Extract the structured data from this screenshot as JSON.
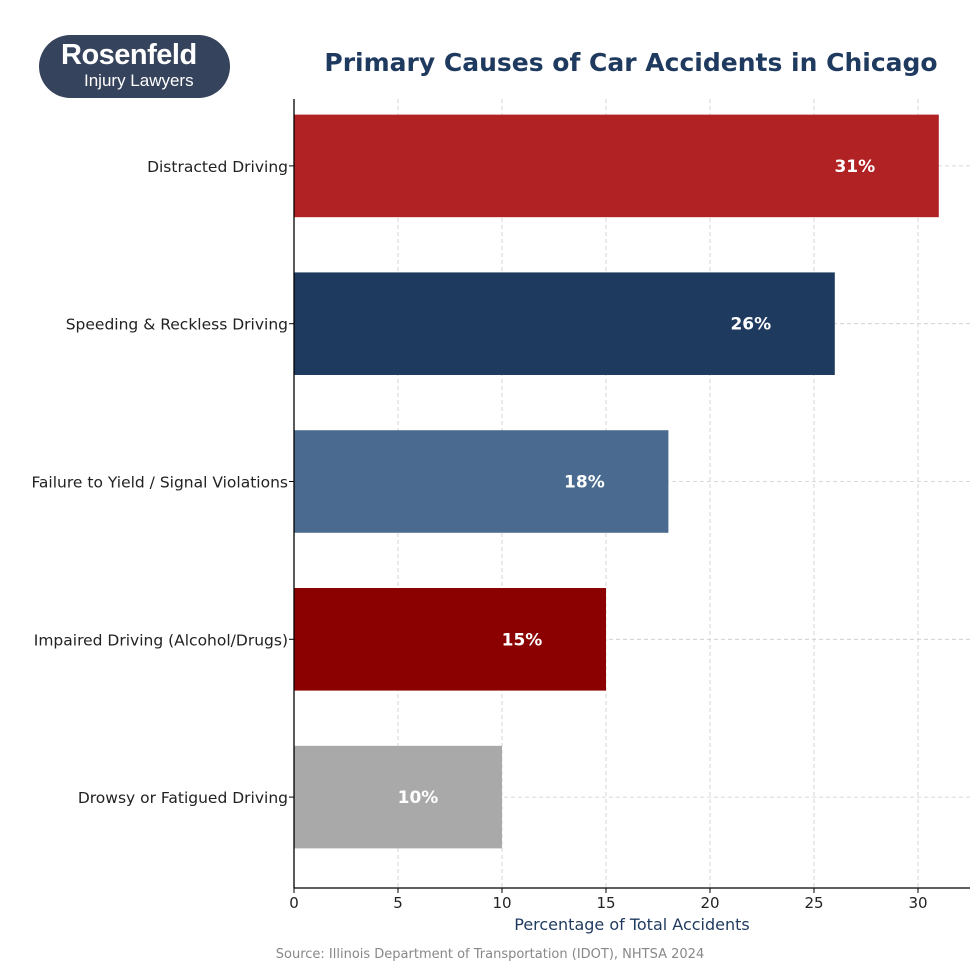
{
  "logo": {
    "line1": "Rosenfeld",
    "line2": "Injury Lawyers"
  },
  "chart_data": {
    "type": "bar",
    "orientation": "horizontal",
    "title": "Primary Causes of Car Accidents in Chicago",
    "xlabel": "Percentage of Total Accidents",
    "ylabel": "",
    "categories": [
      "Distracted Driving",
      "Speeding & Reckless Driving",
      "Failure to Yield / Signal Violations",
      "Impaired Driving (Alcohol/Drugs)",
      "Drowsy or Fatigued Driving"
    ],
    "values": [
      31,
      26,
      18,
      15,
      10
    ],
    "data_labels": [
      "31%",
      "26%",
      "18%",
      "15%",
      "10%"
    ],
    "colors": [
      "#b02224",
      "#1f3a5f",
      "#4a6b8f",
      "#8b0000",
      "#a9a9a9"
    ],
    "xlim": [
      0,
      32.5
    ],
    "xticks": [
      0,
      5,
      10,
      15,
      20,
      25,
      30
    ],
    "grid": true,
    "source": "Source: Illinois Department of Transportation (IDOT), NHTSA 2024"
  }
}
